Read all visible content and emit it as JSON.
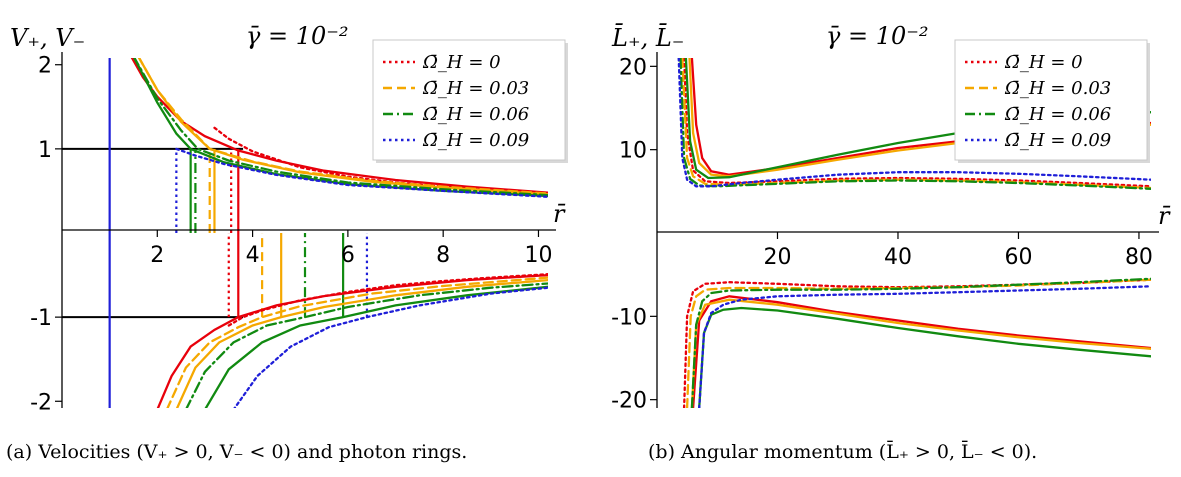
{
  "chart_data": [
    {
      "type": "line",
      "panel": "a",
      "ylabel": "V₊, V₋",
      "xlabel": "r̄",
      "annotation": "γ̄ = 10⁻²",
      "caption": "(a) Velocities (V₊ > 0, V₋ < 0) and photon rings.",
      "xlim": [
        0,
        10.2
      ],
      "ylim": [
        -2.08,
        2.08
      ],
      "xticks": [
        2,
        4,
        6,
        8,
        10
      ],
      "yticks": [
        2,
        1,
        -1,
        -2
      ],
      "ytick_labels": [
        "2",
        "1",
        "-1",
        "-2"
      ],
      "grid": false,
      "legend_placement": "top-right",
      "horizontal_lines": [
        1,
        -1
      ],
      "series": [
        {
          "name": "Ω̄_H = 0",
          "color": "#e8000b",
          "style": "dotted",
          "upper_x": [
            3.2,
            3.5,
            4,
            5,
            6,
            7,
            8,
            9,
            10.2
          ],
          "upper_y": [
            1.25,
            1.12,
            0.97,
            0.78,
            0.67,
            0.6,
            0.55,
            0.51,
            0.47
          ],
          "lower_x": [
            3.5,
            3.8,
            4.2,
            5,
            6,
            7,
            8,
            9,
            10.2
          ],
          "lower_y": [
            -1.1,
            -1.0,
            -0.92,
            -0.8,
            -0.7,
            -0.62,
            -0.57,
            -0.53,
            -0.49
          ]
        },
        {
          "name": "Ω̄_H = 0",
          "color": "#e8000b",
          "style": "solid",
          "upper_x": [
            1.45,
            1.7,
            2,
            2.5,
            3,
            3.7,
            4.5,
            5.5,
            7,
            8.5,
            10.2
          ],
          "upper_y": [
            2.1,
            1.85,
            1.62,
            1.33,
            1.15,
            0.98,
            0.86,
            0.74,
            0.63,
            0.55,
            0.48
          ],
          "lower_x": [
            2.0,
            2.3,
            2.7,
            3.2,
            3.7,
            4.5,
            5.5,
            7,
            8.5,
            10.2
          ],
          "lower_y": [
            -2.1,
            -1.7,
            -1.35,
            -1.15,
            -1.0,
            -0.86,
            -0.75,
            -0.64,
            -0.56,
            -0.5
          ]
        },
        {
          "name": "Ω̄_H = 0.03",
          "color": "#f5a800",
          "style": "dashed",
          "upper_x": [
            1.6,
            2,
            2.5,
            3.1,
            4,
            5,
            6.5,
            8,
            10.2
          ],
          "upper_y": [
            2.1,
            1.7,
            1.35,
            1.0,
            0.85,
            0.73,
            0.62,
            0.55,
            0.47
          ],
          "lower_x": [
            2.2,
            2.6,
            3.1,
            3.7,
            4.2,
            5,
            6.5,
            8,
            10.2
          ],
          "lower_y": [
            -2.1,
            -1.6,
            -1.3,
            -1.12,
            -1.0,
            -0.87,
            -0.72,
            -0.63,
            -0.53
          ]
        },
        {
          "name": "Ω̄_H = 0.03",
          "color": "#f5a800",
          "style": "solid",
          "upper_x": [
            1.6,
            2,
            2.5,
            3.1,
            3.8,
            5,
            6.5,
            8,
            10.2
          ],
          "upper_y": [
            2.1,
            1.7,
            1.32,
            1.0,
            0.87,
            0.72,
            0.61,
            0.54,
            0.46
          ],
          "lower_x": [
            2.4,
            2.8,
            3.3,
            4,
            4.6,
            5.5,
            7,
            8.5,
            10.2
          ],
          "lower_y": [
            -2.1,
            -1.6,
            -1.3,
            -1.1,
            -1.0,
            -0.88,
            -0.74,
            -0.64,
            -0.56
          ]
        },
        {
          "name": "Ω̄_H = 0.06",
          "color": "#118a11",
          "style": "dashdot",
          "upper_x": [
            1.5,
            2,
            2.5,
            2.85,
            3.5,
            4.5,
            6,
            8,
            10.2
          ],
          "upper_y": [
            2.1,
            1.6,
            1.22,
            1.0,
            0.86,
            0.73,
            0.6,
            0.52,
            0.45
          ],
          "lower_x": [
            2.6,
            3,
            3.6,
            4.3,
            5.1,
            6,
            7.5,
            9,
            10.2
          ],
          "lower_y": [
            -2.1,
            -1.65,
            -1.3,
            -1.1,
            -1.0,
            -0.88,
            -0.74,
            -0.65,
            -0.6
          ]
        },
        {
          "name": "Ω̄_H = 0.06",
          "color": "#118a11",
          "style": "solid",
          "upper_x": [
            1.5,
            2,
            2.4,
            2.7,
            3.4,
            4.5,
            6,
            8,
            10.2
          ],
          "upper_y": [
            2.1,
            1.55,
            1.18,
            1.0,
            0.84,
            0.7,
            0.58,
            0.5,
            0.44
          ],
          "lower_x": [
            3.0,
            3.5,
            4.2,
            5.0,
            5.9,
            7,
            8.5,
            10.2
          ],
          "lower_y": [
            -2.1,
            -1.62,
            -1.3,
            -1.1,
            -1.0,
            -0.86,
            -0.74,
            -0.64
          ]
        },
        {
          "name": "Ω̄_H = 0.09",
          "color": "#1f1fd8",
          "style": "dotted",
          "upper_x": [
            2.4,
            2.8,
            3.4,
            4.5,
            6,
            8,
            10.2
          ],
          "upper_y": [
            1.0,
            0.92,
            0.82,
            0.69,
            0.57,
            0.5,
            0.43
          ],
          "lower_x": [
            3.6,
            4.1,
            4.8,
            5.6,
            6.4,
            7.5,
            9,
            10.2
          ],
          "lower_y": [
            -2.1,
            -1.7,
            -1.35,
            -1.12,
            -1.0,
            -0.86,
            -0.72,
            -0.65
          ]
        }
      ],
      "vertical_lines": [
        {
          "x": 1.0,
          "color": "#1f1fd8",
          "style": "solid",
          "y": [
            -2.08,
            2.08
          ]
        },
        {
          "x": 3.55,
          "color": "#e8000b",
          "style": "dotted",
          "y": [
            0,
            1
          ]
        },
        {
          "x": 3.7,
          "color": "#e8000b",
          "style": "solid",
          "y": [
            0,
            1
          ]
        },
        {
          "x": 3.1,
          "color": "#f5a800",
          "style": "dashed",
          "y": [
            0,
            1
          ]
        },
        {
          "x": 3.2,
          "color": "#f5a800",
          "style": "solid",
          "y": [
            0,
            1
          ]
        },
        {
          "x": 2.8,
          "color": "#118a11",
          "style": "dashdot",
          "y": [
            0,
            1
          ]
        },
        {
          "x": 2.7,
          "color": "#118a11",
          "style": "solid",
          "y": [
            0,
            1
          ]
        },
        {
          "x": 2.4,
          "color": "#1f1fd8",
          "style": "dotted",
          "y": [
            0,
            1
          ]
        },
        {
          "x": 3.5,
          "color": "#e8000b",
          "style": "dotted",
          "y": [
            -1,
            0
          ]
        },
        {
          "x": 3.7,
          "color": "#e8000b",
          "style": "solid",
          "y": [
            -1,
            0
          ]
        },
        {
          "x": 4.2,
          "color": "#f5a800",
          "style": "dashed",
          "y": [
            -1,
            0
          ]
        },
        {
          "x": 4.6,
          "color": "#f5a800",
          "style": "solid",
          "y": [
            -1,
            0
          ]
        },
        {
          "x": 5.1,
          "color": "#118a11",
          "style": "dashdot",
          "y": [
            -1,
            0
          ]
        },
        {
          "x": 5.9,
          "color": "#118a11",
          "style": "solid",
          "y": [
            -1,
            0
          ]
        },
        {
          "x": 6.4,
          "color": "#1f1fd8",
          "style": "dotted",
          "y": [
            -1,
            0
          ]
        }
      ]
    },
    {
      "type": "line",
      "panel": "b",
      "ylabel": "L̄₊, L̄₋",
      "xlabel": "r̄",
      "annotation": "γ̄ = 10⁻²",
      "caption": "(b) Angular momentum (L̄₊ > 0, L̄₋ < 0).",
      "xlim": [
        0,
        82
      ],
      "ylim": [
        -21,
        21
      ],
      "xticks": [
        20,
        40,
        60,
        80
      ],
      "yticks": [
        20,
        10,
        -10,
        -20
      ],
      "ytick_labels": [
        "20",
        "10",
        "-10",
        "-20"
      ],
      "grid": false,
      "legend_placement": "top-right",
      "series": [
        {
          "name": "Ω̄_H = 0",
          "color": "#e8000b",
          "style": "dotted",
          "upper_x": [
            4.5,
            5,
            6,
            8,
            12,
            20,
            30,
            40,
            50,
            60,
            70,
            82
          ],
          "upper_y": [
            21,
            12,
            7.5,
            6.2,
            6.0,
            6.2,
            6.5,
            6.6,
            6.5,
            6.3,
            6.0,
            5.6
          ],
          "lower_x": [
            4.5,
            5,
            6,
            8,
            12,
            20,
            30,
            40,
            50,
            60,
            70,
            82
          ],
          "lower_y": [
            -21,
            -10,
            -7,
            -6.1,
            -5.9,
            -6.1,
            -6.4,
            -6.5,
            -6.4,
            -6.2,
            -6.0,
            -5.6
          ]
        },
        {
          "name": "Ω̄_H = 0",
          "color": "#e8000b",
          "style": "solid",
          "upper_x": [
            5.8,
            6.5,
            7.5,
            9,
            12,
            20,
            30,
            40,
            50,
            60,
            70,
            82
          ],
          "upper_y": [
            21,
            13,
            9,
            7.4,
            7.0,
            7.8,
            9.0,
            10.2,
            11.0,
            11.8,
            12.5,
            13.2
          ],
          "lower_x": [
            6,
            7,
            9,
            12,
            20,
            30,
            40,
            50,
            60,
            70,
            82
          ],
          "lower_y": [
            -21,
            -10.5,
            -8.2,
            -7.6,
            -8.3,
            -9.5,
            -10.5,
            -11.5,
            -12.3,
            -13.0,
            -13.8
          ]
        },
        {
          "name": "Ω̄_H = 0.03",
          "color": "#f5a800",
          "style": "dashed",
          "upper_x": [
            4.2,
            5,
            6,
            8,
            12,
            20,
            30,
            40,
            50,
            60,
            70,
            82
          ],
          "upper_y": [
            21,
            9,
            6.8,
            5.9,
            5.8,
            6.0,
            6.3,
            6.4,
            6.3,
            6.1,
            5.8,
            5.4
          ],
          "lower_x": [
            5,
            5.6,
            6.5,
            8,
            12,
            20,
            30,
            40,
            50,
            60,
            70,
            82
          ],
          "lower_y": [
            -21,
            -10,
            -7.6,
            -6.8,
            -6.6,
            -6.6,
            -6.7,
            -6.6,
            -6.5,
            -6.3,
            -6.0,
            -5.6
          ]
        },
        {
          "name": "Ω̄_H = 0.03",
          "color": "#f5a800",
          "style": "solid",
          "upper_x": [
            5.4,
            6,
            7,
            9,
            12,
            20,
            30,
            40,
            50,
            60,
            70,
            82
          ],
          "upper_y": [
            21,
            12,
            8.4,
            7.0,
            6.8,
            7.6,
            8.8,
            9.9,
            10.8,
            11.6,
            12.3,
            13.0
          ],
          "lower_x": [
            5.8,
            6.5,
            8,
            12,
            20,
            30,
            40,
            50,
            60,
            70,
            82
          ],
          "lower_y": [
            -21,
            -11,
            -8.6,
            -8.0,
            -8.6,
            -9.7,
            -10.8,
            -11.7,
            -12.5,
            -13.2,
            -13.9
          ]
        },
        {
          "name": "Ω̄_H = 0.06",
          "color": "#118a11",
          "style": "dashdot",
          "upper_x": [
            3.9,
            4.5,
            5.5,
            7,
            10,
            20,
            30,
            40,
            50,
            60,
            70,
            82
          ],
          "upper_y": [
            21,
            9,
            6.5,
            5.7,
            5.6,
            5.9,
            6.2,
            6.3,
            6.2,
            6.0,
            5.7,
            5.3
          ],
          "lower_x": [
            5.8,
            6.5,
            7.5,
            9,
            12,
            20,
            30,
            40,
            50,
            60,
            70,
            82
          ],
          "lower_y": [
            -21,
            -11,
            -8.2,
            -7.2,
            -6.9,
            -6.8,
            -6.8,
            -6.7,
            -6.5,
            -6.2,
            -5.9,
            -5.5
          ]
        },
        {
          "name": "Ω̄_H = 0.06",
          "color": "#118a11",
          "style": "solid",
          "upper_x": [
            4.8,
            5.5,
            6.5,
            8.5,
            12,
            20,
            30,
            40,
            50,
            60,
            70,
            82
          ],
          "upper_y": [
            21,
            11,
            7.6,
            6.6,
            6.7,
            7.9,
            9.4,
            10.8,
            12.0,
            13.0,
            13.8,
            14.5
          ],
          "lower_x": [
            7,
            7.8,
            9,
            11,
            14,
            20,
            30,
            40,
            50,
            60,
            70,
            82
          ],
          "lower_y": [
            -21,
            -12,
            -9.8,
            -9.2,
            -9.0,
            -9.3,
            -10.3,
            -11.4,
            -12.4,
            -13.3,
            -14.0,
            -14.8
          ]
        },
        {
          "name": "Ω̄_H = 0.09",
          "color": "#1f1fd8",
          "style": "dotted",
          "upper_x": [
            3.6,
            4.2,
            5,
            6.5,
            9,
            14,
            20,
            30,
            40,
            50,
            60,
            70,
            82
          ],
          "upper_y": [
            21,
            9,
            6.4,
            5.6,
            5.6,
            6.0,
            6.4,
            7.0,
            7.3,
            7.3,
            7.1,
            6.8,
            6.4
          ],
          "lower_x": [
            7,
            7.8,
            9,
            11,
            14,
            20,
            30,
            40,
            50,
            60,
            70,
            82
          ],
          "lower_y": [
            -21,
            -12,
            -9.6,
            -8.6,
            -8.0,
            -7.6,
            -7.4,
            -7.3,
            -7.1,
            -6.9,
            -6.7,
            -6.4
          ]
        }
      ]
    }
  ],
  "legend": {
    "entries": [
      {
        "label": "Ω̄_H = 0",
        "color": "#e8000b",
        "style": "dotted"
      },
      {
        "label": "Ω̄_H = 0.03",
        "color": "#f5a800",
        "style": "dashed"
      },
      {
        "label": "Ω̄_H = 0.06",
        "color": "#118a11",
        "style": "dashdot"
      },
      {
        "label": "Ω̄_H = 0.09",
        "color": "#1f1fd8",
        "style": "dotted"
      }
    ]
  }
}
